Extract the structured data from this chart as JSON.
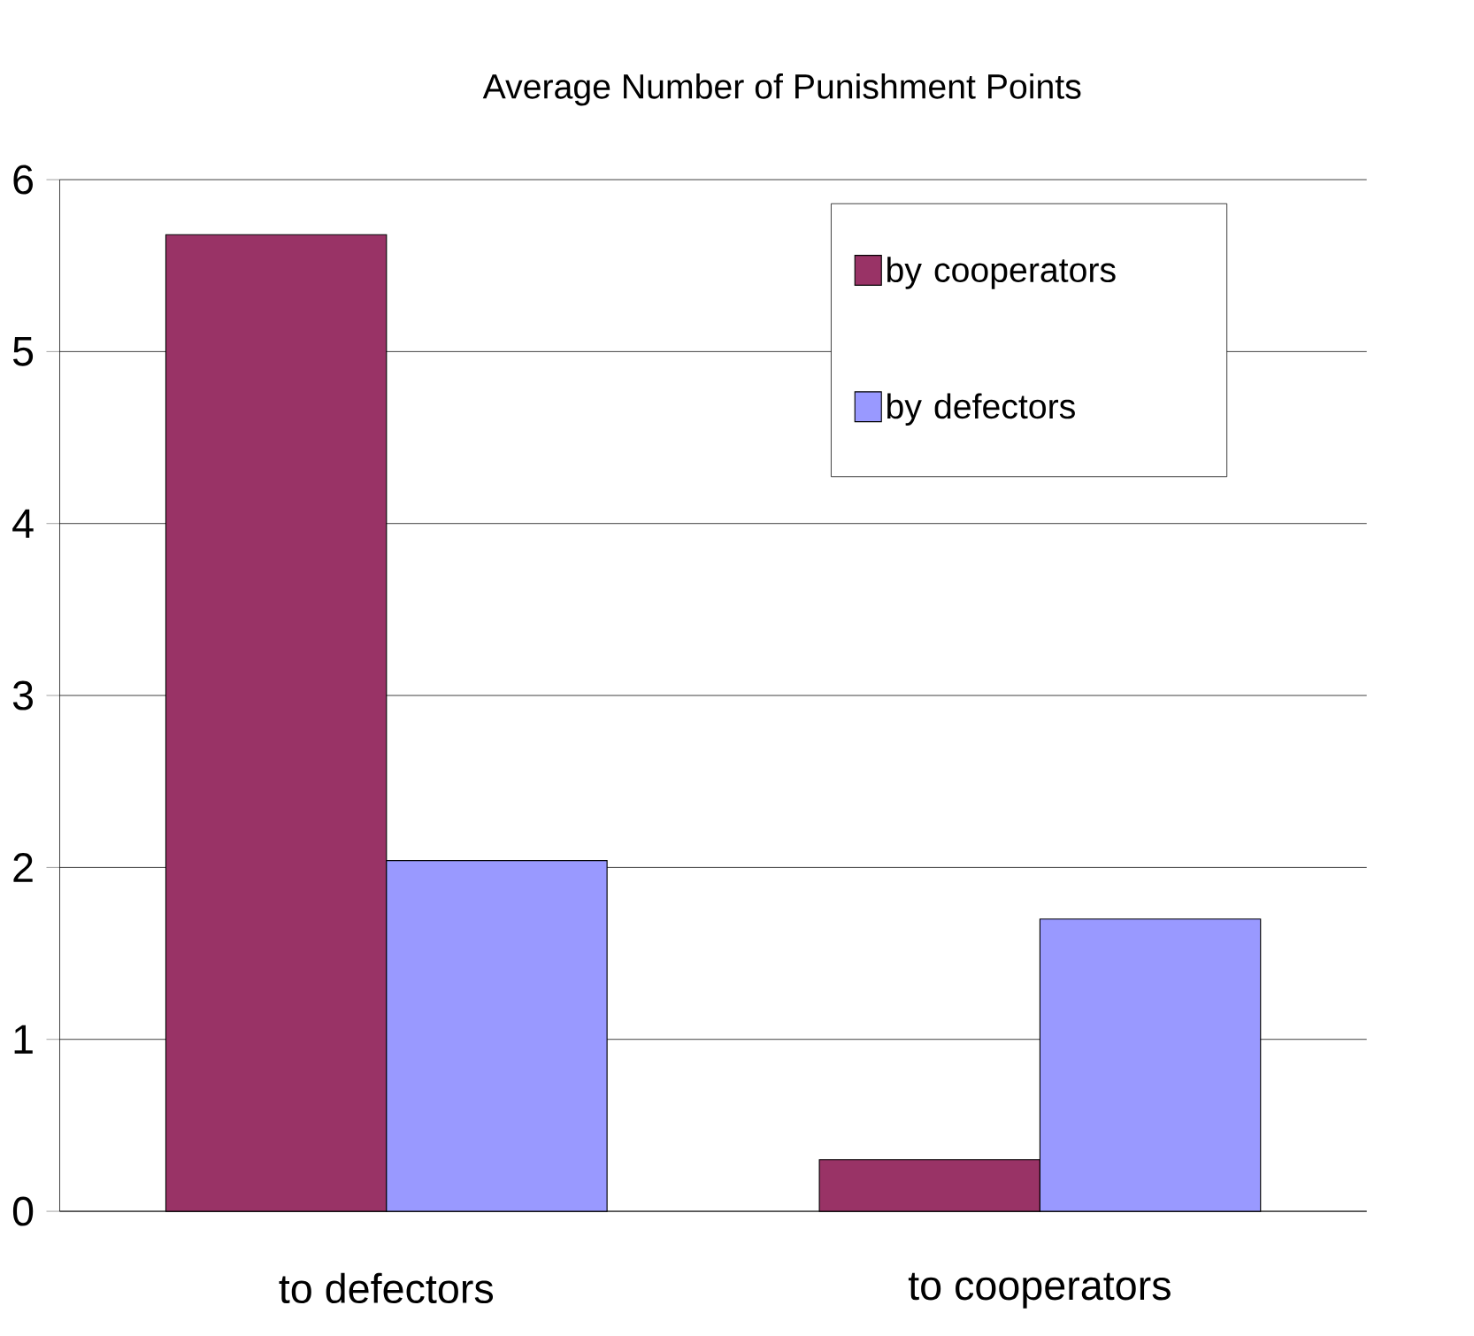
{
  "chart_data": {
    "type": "bar",
    "title": "Average Number of Punishment Points",
    "categories": [
      "to defectors",
      "to cooperators"
    ],
    "series": [
      {
        "name": "by cooperators",
        "color": "#993366",
        "values": [
          5.68,
          0.3
        ]
      },
      {
        "name": "by defectors",
        "color": "#9999ff",
        "values": [
          2.04,
          1.7
        ]
      }
    ],
    "ylim": [
      0,
      6
    ],
    "yticks": [
      0,
      1,
      2,
      3,
      4,
      5,
      6
    ],
    "grid": "y",
    "legend": "top right"
  }
}
